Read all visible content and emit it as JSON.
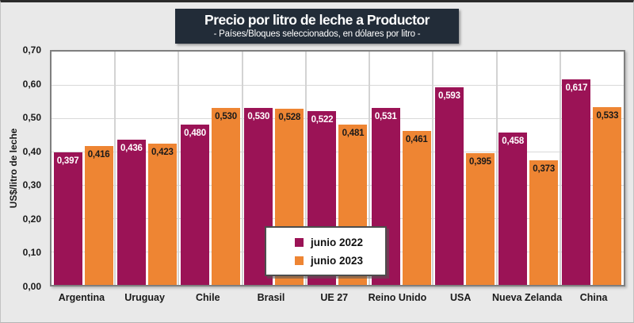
{
  "title": {
    "text": "Precio por litro de leche a Productor",
    "subtitle": "- Países/Bloques seleccionados, en dólares por litro -"
  },
  "y_axis": {
    "label": "US$/litro de leche",
    "ticks": [
      "0,70",
      "0,60",
      "0,50",
      "0,40",
      "0,30",
      "0,20",
      "0,10",
      "0,00"
    ]
  },
  "legend": {
    "items": [
      {
        "label": "junio 2022",
        "color": "#9b1356"
      },
      {
        "label": "junio 2023",
        "color": "#ee8533"
      }
    ]
  },
  "colors": {
    "title_box_bg": "#222c38",
    "title_text": "#ffffff",
    "canvas_bg": "#e9e9e9",
    "plot_bg": "#ffffff",
    "gridline": "#d9d9d9",
    "plot_border": "#7f7f7f",
    "series_2022": "#9b1356",
    "series_2023": "#ee8533"
  },
  "chart_data": {
    "type": "bar",
    "title": "Precio por litro de leche a Productor",
    "subtitle": "- Países/Bloques seleccionados, en dólares por litro -",
    "xlabel": "",
    "ylabel": "US$/litro de leche",
    "ylim": [
      0,
      0.7
    ],
    "ytick_step": 0.1,
    "grid": true,
    "legend_position": "bottom-center-inside",
    "categories": [
      "Argentina",
      "Uruguay",
      "Chile",
      "Brasil",
      "UE 27",
      "Reino Unido",
      "USA",
      "Nueva Zelanda",
      "China"
    ],
    "series": [
      {
        "name": "junio 2022",
        "color": "#9b1356",
        "label_color": "#ffffff",
        "values": [
          0.397,
          0.436,
          0.48,
          0.53,
          0.522,
          0.531,
          0.593,
          0.458,
          0.617
        ],
        "labels": [
          "0,397",
          "0,436",
          "0,480",
          "0,530",
          "0,522",
          "0,531",
          "0,593",
          "0,458",
          "0,617"
        ]
      },
      {
        "name": "junio 2023",
        "color": "#ee8533",
        "label_color": "#1a1a1a",
        "values": [
          0.416,
          0.423,
          0.53,
          0.528,
          0.481,
          0.461,
          0.395,
          0.373,
          0.533
        ],
        "labels": [
          "0,416",
          "0,423",
          "0,530",
          "0,528",
          "0,481",
          "0,461",
          "0,395",
          "0,373",
          "0,533"
        ]
      }
    ]
  }
}
